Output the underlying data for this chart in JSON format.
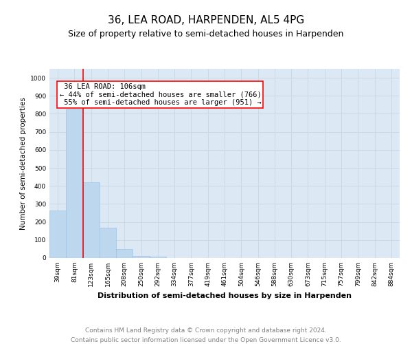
{
  "title": "36, LEA ROAD, HARPENDEN, AL5 4PG",
  "subtitle": "Size of property relative to semi-detached houses in Harpenden",
  "xlabel": "Distribution of semi-detached houses by size in Harpenden",
  "ylabel": "Number of semi-detached properties",
  "footnote1": "Contains HM Land Registry data © Crown copyright and database right 2024.",
  "footnote2": "Contains public sector information licensed under the Open Government Licence v3.0.",
  "categories": [
    "39sqm",
    "81sqm",
    "123sqm",
    "165sqm",
    "208sqm",
    "250sqm",
    "292sqm",
    "334sqm",
    "377sqm",
    "419sqm",
    "461sqm",
    "504sqm",
    "546sqm",
    "588sqm",
    "630sqm",
    "673sqm",
    "715sqm",
    "757sqm",
    "799sqm",
    "842sqm",
    "884sqm"
  ],
  "values": [
    265,
    825,
    420,
    168,
    50,
    12,
    8,
    0,
    0,
    0,
    0,
    0,
    0,
    0,
    0,
    0,
    0,
    0,
    0,
    0,
    0
  ],
  "bar_color": "#bdd7ee",
  "bar_edge_color": "#9dc3e6",
  "property_line_x": 1.5,
  "smaller_pct": 44,
  "smaller_count": 766,
  "larger_pct": 55,
  "larger_count": 951,
  "annotation_label": "36 LEA ROAD: 106sqm",
  "ylim": [
    0,
    1050
  ],
  "yticks": [
    0,
    100,
    200,
    300,
    400,
    500,
    600,
    700,
    800,
    900,
    1000
  ],
  "grid_color": "#c8d9e8",
  "background_color": "#dce9f5",
  "title_fontsize": 11,
  "subtitle_fontsize": 9,
  "annotation_fontsize": 7.5,
  "footnote_fontsize": 6.5,
  "xlabel_fontsize": 8,
  "ylabel_fontsize": 7.5,
  "tick_fontsize": 6.5
}
